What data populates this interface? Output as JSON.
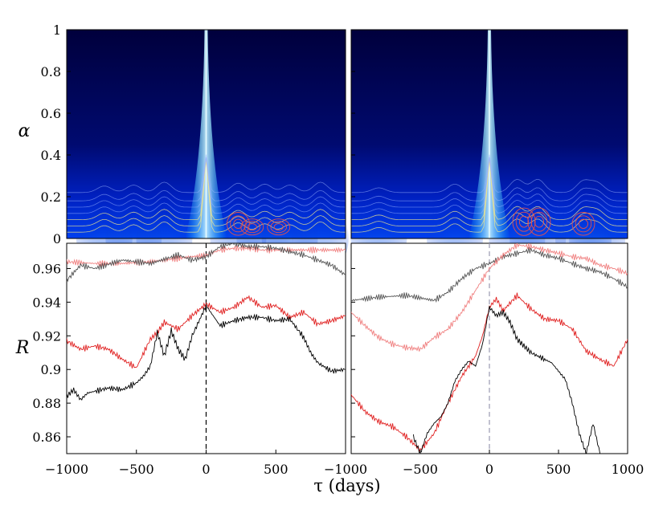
{
  "chart_data": [
    {
      "type": "heatmap",
      "ylabel": "α",
      "ylim": [
        0,
        1
      ],
      "yticks": [
        "0",
        "0.2",
        "0.4",
        "0.6",
        "0.8",
        "1"
      ],
      "xlim": [
        -1000,
        1000
      ],
      "colormap": [
        "#00003c",
        "#0014a0",
        "#0050ff",
        "#00c8ff",
        "#ffffff"
      ],
      "contour_colors": [
        "#f0e68c",
        "#e05050"
      ],
      "panels": [
        {
          "peak_tau": 0,
          "bumps": [
            {
              "tau": -730,
              "alpha": 0.07
            },
            {
              "tau": -520,
              "alpha": 0.08
            },
            {
              "tau": -300,
              "alpha": 0.11
            },
            {
              "tau": 230,
              "alpha": 0.1
            },
            {
              "tau": 420,
              "alpha": 0.09
            },
            {
              "tau": 600,
              "alpha": 0.08
            },
            {
              "tau": 820,
              "alpha": 0.11
            }
          ],
          "red_contours": [
            {
              "tau": 230,
              "alpha": 0.1
            },
            {
              "tau": 330,
              "alpha": 0.07
            },
            {
              "tau": 520,
              "alpha": 0.07
            }
          ]
        },
        {
          "peak_tau": 0,
          "bumps": [
            {
              "tau": -800,
              "alpha": 0.05
            },
            {
              "tau": -250,
              "alpha": 0.09
            },
            {
              "tau": 200,
              "alpha": 0.14
            },
            {
              "tau": 350,
              "alpha": 0.14
            },
            {
              "tau": 680,
              "alpha": 0.12
            },
            {
              "tau": 780,
              "alpha": 0.1
            }
          ],
          "red_contours": [
            {
              "tau": 250,
              "alpha": 0.12
            },
            {
              "tau": 360,
              "alpha": 0.12
            },
            {
              "tau": 680,
              "alpha": 0.1
            }
          ]
        }
      ]
    },
    {
      "type": "line",
      "xlabel": "τ (days)",
      "ylabel": "R",
      "xlim": [
        -1000,
        1000
      ],
      "ylim": [
        0.85,
        0.975
      ],
      "yticks": [
        "0.86",
        "0.88",
        "0.9",
        "0.92",
        "0.94",
        "0.96"
      ],
      "xticks_left": [
        "−1000",
        "−500",
        "0",
        "500",
        "−1000"
      ],
      "xticks_right": [
        "−500",
        "0",
        "500",
        "1000"
      ],
      "vline_tau": 0,
      "panels": [
        {
          "vline_color": "#000000",
          "series": [
            {
              "color": "#f08080",
              "x": [
                -1000,
                -800,
                -600,
                -400,
                -200,
                0,
                100,
                200,
                300,
                400,
                500,
                600,
                800,
                1000
              ],
              "y": [
                0.964,
                0.963,
                0.963,
                0.964,
                0.966,
                0.968,
                0.971,
                0.972,
                0.972,
                0.971,
                0.971,
                0.971,
                0.971,
                0.971
              ]
            },
            {
              "color": "#555555",
              "x": [
                -1000,
                -900,
                -800,
                -600,
                -400,
                -200,
                -100,
                0,
                100,
                200,
                300,
                400,
                500,
                600,
                700,
                800,
                900,
                1000
              ],
              "y": [
                0.953,
                0.962,
                0.96,
                0.965,
                0.963,
                0.968,
                0.965,
                0.967,
                0.973,
                0.975,
                0.973,
                0.973,
                0.972,
                0.97,
                0.968,
                0.965,
                0.962,
                0.956
              ]
            },
            {
              "color": "#e02020",
              "x": [
                -1000,
                -900,
                -800,
                -700,
                -600,
                -500,
                -400,
                -350,
                -300,
                -200,
                -100,
                0,
                100,
                200,
                300,
                400,
                500,
                600,
                700,
                800,
                900,
                1000
              ],
              "y": [
                0.917,
                0.912,
                0.914,
                0.912,
                0.906,
                0.901,
                0.918,
                0.922,
                0.928,
                0.924,
                0.932,
                0.939,
                0.934,
                0.937,
                0.943,
                0.937,
                0.938,
                0.931,
                0.934,
                0.927,
                0.929,
                0.932
              ]
            },
            {
              "color": "#000000",
              "x": [
                -1000,
                -950,
                -900,
                -850,
                -800,
                -700,
                -600,
                -500,
                -450,
                -400,
                -350,
                -300,
                -250,
                -200,
                -150,
                -100,
                0,
                50,
                100,
                200,
                300,
                400,
                500,
                600,
                700,
                750,
                800,
                900,
                1000
              ],
              "y": [
                0.884,
                0.888,
                0.882,
                0.886,
                0.887,
                0.889,
                0.888,
                0.892,
                0.896,
                0.902,
                0.922,
                0.908,
                0.923,
                0.912,
                0.906,
                0.92,
                0.938,
                0.932,
                0.926,
                0.929,
                0.931,
                0.931,
                0.929,
                0.93,
                0.919,
                0.91,
                0.904,
                0.899,
                0.9
              ]
            }
          ]
        },
        {
          "vline_color": "#9a9ab0",
          "series": [
            {
              "color": "#555555",
              "x": [
                -1000,
                -800,
                -600,
                -400,
                -300,
                -200,
                -100,
                0,
                100,
                200,
                300,
                400,
                500,
                600,
                700,
                800,
                900,
                1000
              ],
              "y": [
                0.941,
                0.943,
                0.944,
                0.941,
                0.946,
                0.954,
                0.96,
                0.963,
                0.967,
                0.969,
                0.971,
                0.968,
                0.966,
                0.963,
                0.96,
                0.958,
                0.954,
                0.949
              ]
            },
            {
              "color": "#f08080",
              "x": [
                -1000,
                -900,
                -800,
                -700,
                -600,
                -500,
                -400,
                -300,
                -200,
                -100,
                0,
                100,
                200,
                300,
                400,
                500,
                600,
                700,
                800,
                900,
                1000
              ],
              "y": [
                0.934,
                0.926,
                0.919,
                0.915,
                0.913,
                0.912,
                0.919,
                0.924,
                0.934,
                0.947,
                0.96,
                0.968,
                0.974,
                0.973,
                0.971,
                0.969,
                0.967,
                0.966,
                0.962,
                0.96,
                0.957
              ]
            },
            {
              "color": "#e02020",
              "x": [
                -1000,
                -900,
                -800,
                -700,
                -600,
                -500,
                -400,
                -300,
                -200,
                -100,
                -50,
                0,
                50,
                100,
                200,
                300,
                400,
                500,
                600,
                700,
                800,
                900,
                1000
              ],
              "y": [
                0.885,
                0.875,
                0.869,
                0.866,
                0.86,
                0.852,
                0.862,
                0.88,
                0.896,
                0.908,
                0.92,
                0.937,
                0.942,
                0.935,
                0.944,
                0.936,
                0.93,
                0.929,
                0.924,
                0.911,
                0.906,
                0.902,
                0.918
              ]
            },
            {
              "color": "#000000",
              "x": [
                -550,
                -500,
                -450,
                -400,
                -350,
                -300,
                -250,
                -200,
                -150,
                -100,
                -50,
                0,
                50,
                100,
                150,
                200,
                250,
                300,
                400,
                450,
                500,
                550,
                600,
                650,
                700,
                750,
                800
              ],
              "y": [
                0.86,
                0.85,
                0.862,
                0.868,
                0.872,
                0.88,
                0.893,
                0.9,
                0.905,
                0.902,
                0.915,
                0.937,
                0.932,
                0.934,
                0.928,
                0.918,
                0.914,
                0.91,
                0.906,
                0.904,
                0.899,
                0.894,
                0.88,
                0.862,
                0.85,
                0.868,
                0.85
              ]
            }
          ]
        }
      ]
    }
  ]
}
